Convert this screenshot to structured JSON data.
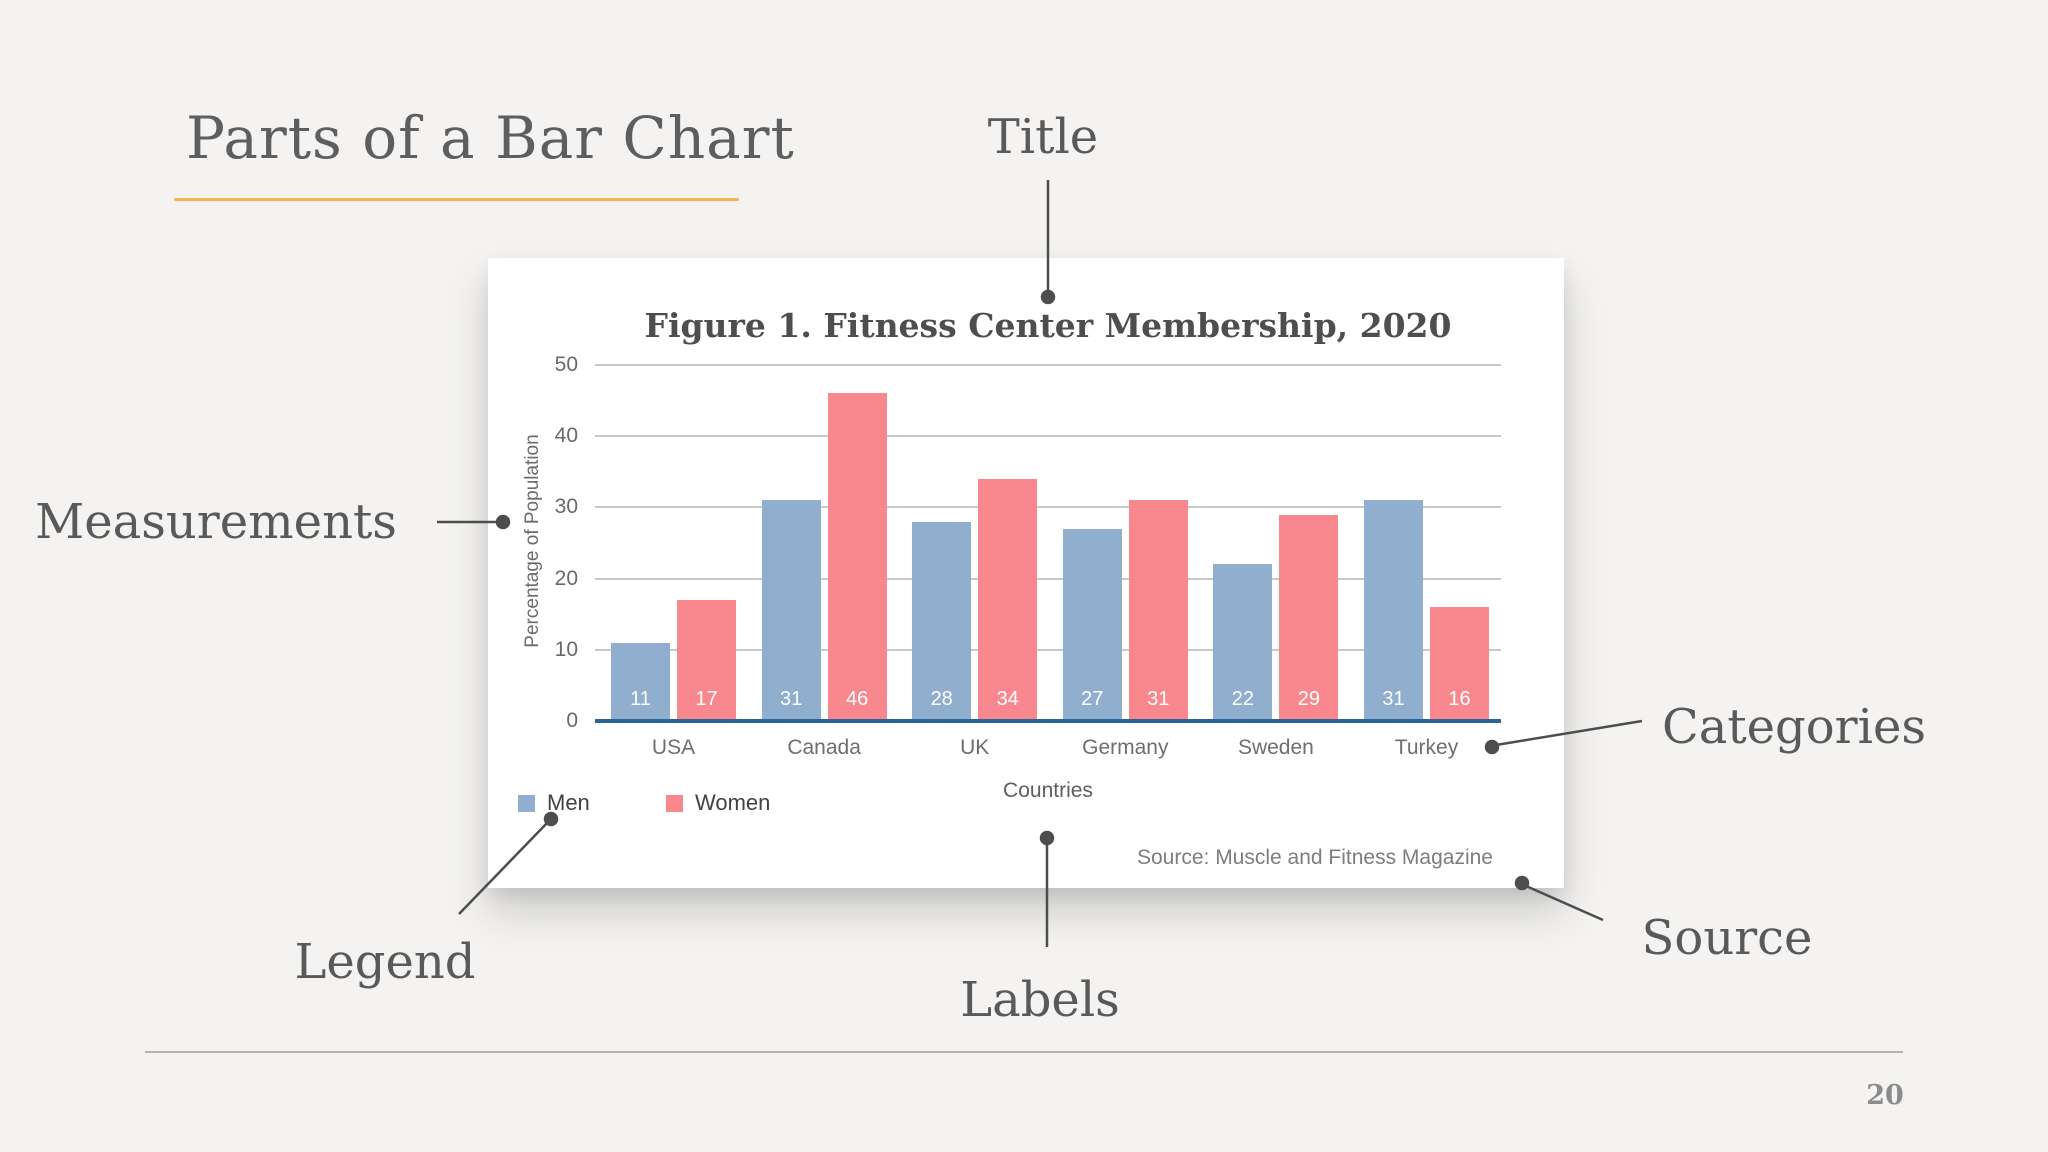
{
  "slide": {
    "title": "Parts of a Bar Chart",
    "page_number": "20",
    "accent_color": "#F0B552"
  },
  "annotations": {
    "title": {
      "label": "Title"
    },
    "measurements": {
      "label": "Measurements"
    },
    "categories": {
      "label": "Categories"
    },
    "legend": {
      "label": "Legend"
    },
    "labels": {
      "label": "Labels"
    },
    "source": {
      "label": "Source"
    }
  },
  "chart_data": {
    "type": "bar",
    "title": "Figure 1. Fitness Center Membership, 2020",
    "categories": [
      "USA",
      "Canada",
      "UK",
      "Germany",
      "Sweden",
      "Turkey"
    ],
    "series": [
      {
        "name": "Men",
        "color": "#90AECD",
        "values": [
          11,
          31,
          28,
          27,
          22,
          31
        ]
      },
      {
        "name": "Women",
        "color": "#F9878E",
        "values": [
          17,
          46,
          34,
          31,
          29,
          16
        ]
      }
    ],
    "xlabel": "Countries",
    "ylabel": "Percentage of Population",
    "ylim": [
      0,
      50
    ],
    "yticks": [
      0,
      10,
      20,
      30,
      40,
      50
    ],
    "grid": true,
    "bar_value_labels": "inside-bottom",
    "legend_position": "bottom-left",
    "axis_line_color": "#2A6397",
    "source": "Source: Muscle and Fitness Magazine"
  }
}
